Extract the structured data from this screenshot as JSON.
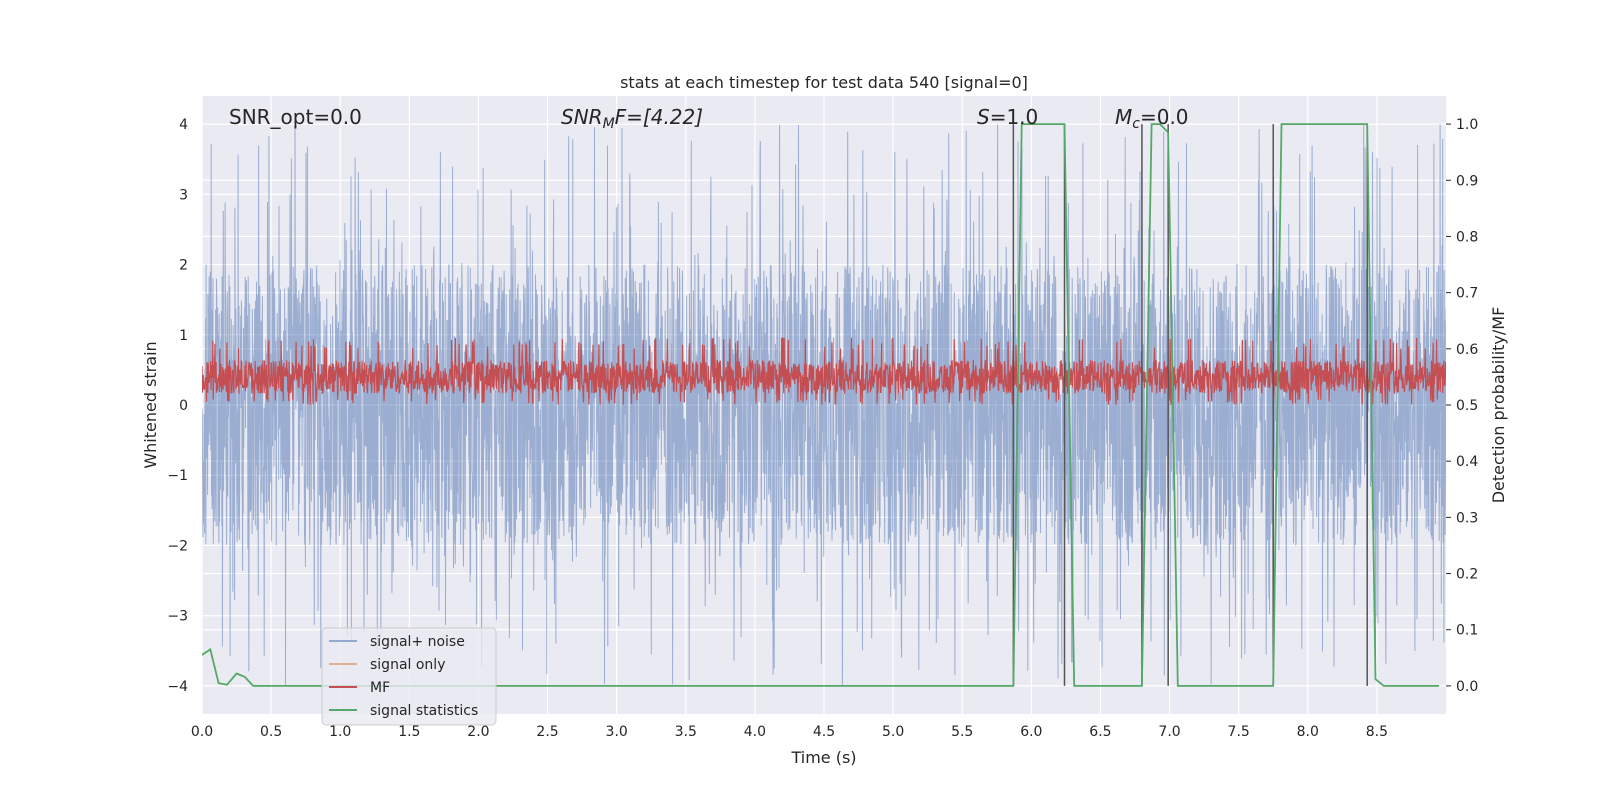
{
  "chart_data": {
    "type": "line",
    "title": "stats at each timestep for test data 540 [signal=0]",
    "xlabel": "Time (s)",
    "ylabel": "Whitened strain",
    "y2label": "Detection probability/MF",
    "xlim": [
      0.0,
      9.0
    ],
    "ylim": [
      -4.4,
      4.4
    ],
    "y2lim": [
      -0.05,
      1.05
    ],
    "xticks": [
      "0.0",
      "0.5",
      "1.0",
      "1.5",
      "2.0",
      "2.5",
      "3.0",
      "3.5",
      "4.0",
      "4.5",
      "5.0",
      "5.5",
      "6.0",
      "6.5",
      "7.0",
      "7.5",
      "8.0",
      "8.5"
    ],
    "yticks": [
      "4",
      "3",
      "2",
      "1",
      "0",
      "−1",
      "−2",
      "−3",
      "−4"
    ],
    "y2ticks": [
      "1.0",
      "0.9",
      "0.8",
      "0.7",
      "0.6",
      "0.5",
      "0.4",
      "0.3",
      "0.2",
      "0.1",
      "0.0"
    ],
    "grid": true,
    "legend_position": "lower-left",
    "annotations": {
      "snr_opt": "SNR_opt=0.0",
      "snr_mf_main": "SNR",
      "snr_mf_sub": "M",
      "snr_mf_rest": "F=[4.22]",
      "s_main": "S",
      "s_rest": "=1.0",
      "mc_main": "M",
      "mc_sub": "c",
      "mc_rest": "=0.0"
    },
    "series": [
      {
        "name": "signal+ noise",
        "color": "#4c72b0",
        "axis": "left",
        "noise_amplitude": 4.0
      },
      {
        "name": "signal only",
        "color": "#dd8452",
        "axis": "left",
        "values": []
      },
      {
        "name": "MF",
        "color": "#c44e52",
        "axis": "right",
        "baseline": 0.55,
        "range": [
          0.5,
          0.62
        ]
      },
      {
        "name": "signal statistics",
        "color": "#55a868",
        "axis": "right",
        "x": [
          0.0,
          0.06,
          0.12,
          0.18,
          0.25,
          0.31,
          0.37,
          5.87,
          5.93,
          6.24,
          6.31,
          6.8,
          6.87,
          6.93,
          6.99,
          7.06,
          7.75,
          7.81,
          8.43,
          8.49,
          8.55,
          8.95
        ],
        "values": [
          0.055,
          0.065,
          0.005,
          0.002,
          0.022,
          0.016,
          0.0,
          0.0,
          1.0,
          1.0,
          0.0,
          0.0,
          1.0,
          1.0,
          0.985,
          0.0,
          0.0,
          1.0,
          1.0,
          0.012,
          0.0,
          0.0
        ]
      }
    ],
    "vertical_lines": {
      "color": "#555555",
      "x": [
        5.87,
        6.24,
        6.8,
        6.99,
        7.75,
        8.43
      ],
      "y2_top": 1.0
    }
  }
}
